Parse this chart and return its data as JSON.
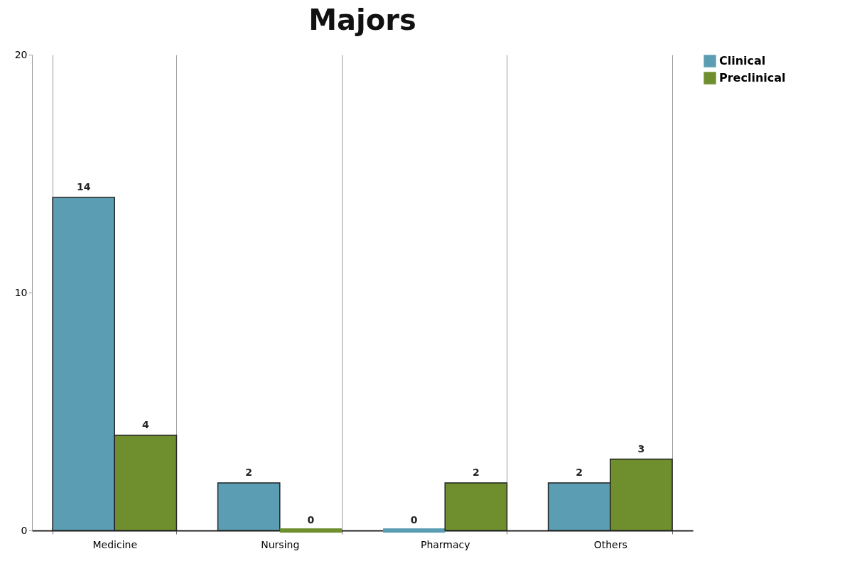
{
  "chart_data": {
    "type": "bar",
    "title": "Majors",
    "categories": [
      "Medicine",
      "Nursing",
      "Pharmacy",
      "Others"
    ],
    "series": [
      {
        "name": "Clinical",
        "color": "#5b9db3",
        "values": [
          14,
          2,
          0,
          2
        ]
      },
      {
        "name": "Preclinical",
        "color": "#6f8f2f",
        "values": [
          4,
          0,
          2,
          3
        ]
      }
    ],
    "ylim": [
      0,
      20
    ],
    "yticks": [
      0,
      10,
      20
    ],
    "grid": "x",
    "legend": "right",
    "data_labels": true
  }
}
